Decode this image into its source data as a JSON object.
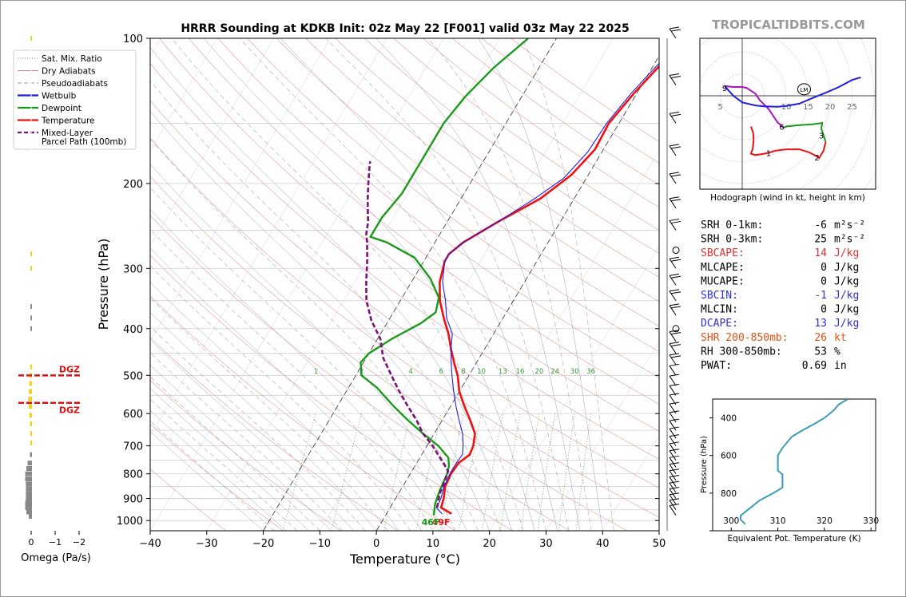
{
  "title": "HRRR Sounding at KDKB Init: 02z May 22 [F001] valid 03z May 22 2025",
  "watermark": "TROPICALTIDBITS.COM",
  "legend": [
    {
      "label": "Sat. Mix. Ratio",
      "color": "#777777",
      "style": "dotted"
    },
    {
      "label": "Dry Adiabats",
      "color": "#e08080",
      "style": "solid"
    },
    {
      "label": "Pseudoadiabats",
      "color": "#999999",
      "style": "dashed"
    },
    {
      "label": "Wetbulb",
      "color": "#1f1fe0",
      "style": "solid"
    },
    {
      "label": "Dewpoint",
      "color": "#1a9a1a",
      "style": "solid"
    },
    {
      "label": "Temperature",
      "color": "#ee1111",
      "style": "solid"
    },
    {
      "label": "Mixed-Layer\nParcel Path (100mb)",
      "color": "#7a117a",
      "style": "dashed"
    }
  ],
  "omega": {
    "xlabel": "Omega (Pa/s)",
    "ticks": [
      "0",
      "−1",
      "−2"
    ],
    "dgz_label": "DGZ",
    "dgz_levels": [
      500,
      570
    ],
    "bars": [
      {
        "p": 980,
        "v": 0.1,
        "c": "#888"
      },
      {
        "p": 960,
        "v": 0.2,
        "c": "#888"
      },
      {
        "p": 940,
        "v": 0.25,
        "c": "#888"
      },
      {
        "p": 920,
        "v": 0.25,
        "c": "#888"
      },
      {
        "p": 900,
        "v": 0.22,
        "c": "#888"
      },
      {
        "p": 880,
        "v": 0.22,
        "c": "#888"
      },
      {
        "p": 860,
        "v": 0.22,
        "c": "#888"
      },
      {
        "p": 840,
        "v": 0.22,
        "c": "#888"
      },
      {
        "p": 820,
        "v": 0.25,
        "c": "#888"
      },
      {
        "p": 800,
        "v": 0.25,
        "c": "#888"
      },
      {
        "p": 780,
        "v": 0.2,
        "c": "#888"
      },
      {
        "p": 760,
        "v": 0.15,
        "c": "#888"
      },
      {
        "p": 730,
        "v": 0.05,
        "c": "#888"
      },
      {
        "p": 690,
        "v": 0.04,
        "c": "#f5d020"
      },
      {
        "p": 660,
        "v": 0.04,
        "c": "#f5d020"
      },
      {
        "p": 630,
        "v": 0.05,
        "c": "#f5d020"
      },
      {
        "p": 605,
        "v": 0.07,
        "c": "#f5d020"
      },
      {
        "p": 580,
        "v": 0.1,
        "c": "#f5d020"
      },
      {
        "p": 560,
        "v": 0.12,
        "c": "#f5d020"
      },
      {
        "p": 540,
        "v": 0.1,
        "c": "#f5d020"
      },
      {
        "p": 520,
        "v": 0.08,
        "c": "#f5d020"
      },
      {
        "p": 500,
        "v": 0.06,
        "c": "#f5d020"
      },
      {
        "p": 480,
        "v": 0.04,
        "c": "#f5d020"
      },
      {
        "p": 400,
        "v": 0.03,
        "c": "#888"
      },
      {
        "p": 380,
        "v": 0.03,
        "c": "#888"
      },
      {
        "p": 360,
        "v": 0.03,
        "c": "#888"
      },
      {
        "p": 300,
        "v": 0.03,
        "c": "#f5d020"
      },
      {
        "p": 280,
        "v": 0.03,
        "c": "#f5d020"
      },
      {
        "p": 100,
        "v": 0.03,
        "c": "#f5d020"
      }
    ]
  },
  "chart_data": [
    {
      "type": "line",
      "title": "HRRR Sounding at KDKB Init: 02z May 22 [F001] valid 03z May 22 2025",
      "xlabel": "Temperature (°C)",
      "ylabel": "Pressure (hPa)",
      "xlim": [
        -40,
        50
      ],
      "ylim": [
        1050,
        100
      ],
      "yscale": "log",
      "x_ticks": [
        "−40",
        "−30",
        "−20",
        "−10",
        "0",
        "10",
        "20",
        "30",
        "40",
        "50"
      ],
      "y_ticks": [
        "100",
        "200",
        "300",
        "400",
        "500",
        "600",
        "700",
        "800",
        "900",
        "1000"
      ],
      "mixing_ratio_labels": [
        "1",
        "2",
        "4",
        "6",
        "8",
        "10",
        "13",
        "16",
        "20",
        "24",
        "30",
        "36"
      ],
      "surface_temp_label": "49F",
      "surface_dewp_label": "46F",
      "series": [
        {
          "name": "Temperature",
          "color": "#ee1111",
          "points": [
            [
              11.5,
              968
            ],
            [
              9,
              940
            ],
            [
              8.5,
              900
            ],
            [
              7.5,
              850
            ],
            [
              7.2,
              800
            ],
            [
              7.4,
              760
            ],
            [
              8.5,
              730
            ],
            [
              8.2,
              700
            ],
            [
              7.2,
              660
            ],
            [
              5,
              620
            ],
            [
              2.5,
              580
            ],
            [
              0,
              540
            ],
            [
              -2,
              500
            ],
            [
              -4,
              470
            ],
            [
              -6,
              440
            ],
            [
              -8,
              410
            ],
            [
              -10.5,
              380
            ],
            [
              -13,
              350
            ],
            [
              -15,
              320
            ],
            [
              -16.3,
              290
            ],
            [
              -16.3,
              280
            ],
            [
              -15,
              265
            ],
            [
              -11,
              240
            ],
            [
              -6,
              215
            ],
            [
              -3,
              192
            ],
            [
              -1.5,
              170
            ],
            [
              -1.8,
              150
            ],
            [
              -0.5,
              130
            ],
            [
              1,
              115
            ],
            [
              3,
              100
            ]
          ]
        },
        {
          "name": "Wetbulb",
          "color": "#1f1fe0",
          "points": [
            [
              9.8,
              968
            ],
            [
              8.2,
              940
            ],
            [
              8,
              900
            ],
            [
              7.3,
              850
            ],
            [
              7,
              800
            ],
            [
              7,
              760
            ],
            [
              7.2,
              730
            ],
            [
              6.4,
              700
            ],
            [
              5,
              660
            ],
            [
              3,
              620
            ],
            [
              1,
              580
            ],
            [
              -1,
              540
            ],
            [
              -3,
              500
            ],
            [
              -4.5,
              470
            ],
            [
              -6,
              440
            ],
            [
              -7.3,
              410
            ],
            [
              -10,
              380
            ],
            [
              -12,
              350
            ],
            [
              -14.5,
              320
            ],
            [
              -16.3,
              290
            ],
            [
              -16.3,
              280
            ],
            [
              -15,
              265
            ],
            [
              -11,
              240
            ],
            [
              -7,
              215
            ],
            [
              -4,
              195
            ],
            [
              -2.5,
              172
            ],
            [
              -2.2,
              150
            ],
            [
              -1,
              130
            ],
            [
              0.5,
              115
            ],
            [
              2.5,
              100
            ]
          ]
        },
        {
          "name": "Dewpoint",
          "color": "#1a9a1a",
          "points": [
            [
              8.5,
              975
            ],
            [
              7.5,
              920
            ],
            [
              7,
              870
            ],
            [
              6.5,
              800
            ],
            [
              6,
              770
            ],
            [
              5,
              740
            ],
            [
              2,
              700
            ],
            [
              -2,
              660
            ],
            [
              -6,
              620
            ],
            [
              -10,
              580
            ],
            [
              -15,
              530
            ],
            [
              -19,
              500
            ],
            [
              -20.5,
              470
            ],
            [
              -20,
              450
            ],
            [
              -17.5,
              420
            ],
            [
              -14,
              390
            ],
            [
              -12.5,
              370
            ],
            [
              -13.5,
              345
            ],
            [
              -17,
              315
            ],
            [
              -22,
              285
            ],
            [
              -28.5,
              265
            ],
            [
              -32,
              258
            ],
            [
              -32,
              250
            ],
            [
              -32,
              235
            ],
            [
              -31,
              210
            ],
            [
              -31,
              195
            ],
            [
              -31,
              170
            ],
            [
              -31,
              150
            ],
            [
              -30,
              132
            ],
            [
              -28,
              115
            ],
            [
              -25,
              100
            ]
          ]
        },
        {
          "name": "Mixed-Layer Parcel Path (100mb)",
          "color": "#7a117a",
          "points": [
            [
              8.3,
              940
            ],
            [
              7.3,
              880
            ],
            [
              6.8,
              820
            ],
            [
              6.4,
              790
            ],
            [
              5.3,
              770
            ],
            [
              3.5,
              740
            ],
            [
              1,
              700
            ],
            [
              -2,
              660
            ],
            [
              -4.5,
              620
            ],
            [
              -7.5,
              580
            ],
            [
              -11,
              535
            ],
            [
              -14.5,
              490
            ],
            [
              -17,
              460
            ],
            [
              -19.5,
              420
            ],
            [
              -23,
              385
            ],
            [
              -26,
              350
            ],
            [
              -28,
              320
            ],
            [
              -30,
              290
            ],
            [
              -32,
              265
            ],
            [
              -33,
              255
            ],
            [
              -34,
              240
            ],
            [
              -35,
              230
            ],
            [
              -36.5,
              215
            ],
            [
              -38,
              200
            ],
            [
              -39.5,
              185
            ],
            [
              -40,
              180
            ]
          ]
        }
      ]
    },
    {
      "type": "line",
      "title": "Hodograph (wind in kt, height in km)",
      "ring_labels": [
        "5",
        "10",
        "15",
        "20",
        "25"
      ],
      "hodo_x_label": "kt",
      "motion_label": "LM",
      "height_labels": [
        {
          "t": "1",
          "u": 6,
          "v": -13
        },
        {
          "t": "2",
          "u": 17,
          "v": -14
        },
        {
          "t": "3",
          "u": 18,
          "v": -9
        },
        {
          "t": "6",
          "u": 9,
          "v": -7
        },
        {
          "t": "9",
          "u": -4,
          "v": 1.8
        }
      ],
      "motion_point": {
        "u": 13,
        "v": 1.3
      },
      "series": [
        {
          "name": "0-3 km (red)",
          "color": "#ee1111",
          "points": [
            [
              2,
              -7
            ],
            [
              2.5,
              -8.5
            ],
            [
              2.6,
              -10
            ],
            [
              2.4,
              -12
            ],
            [
              2,
              -13.2
            ],
            [
              3,
              -13.5
            ],
            [
              5,
              -13.2
            ],
            [
              6,
              -13
            ],
            [
              7.5,
              -12.5
            ],
            [
              10,
              -12.2
            ],
            [
              13,
              -12.2
            ],
            [
              15,
              -12.8
            ],
            [
              17,
              -13.8
            ],
            [
              17.5,
              -14.2
            ],
            [
              18.5,
              -12.5
            ],
            [
              19,
              -10.5
            ]
          ]
        },
        {
          "name": "3-6 km (green)",
          "color": "#1a9a1a",
          "points": [
            [
              19,
              -10.5
            ],
            [
              18.5,
              -9
            ],
            [
              18,
              -7.5
            ],
            [
              18.2,
              -6.2
            ],
            [
              16,
              -6.5
            ],
            [
              13,
              -6.7
            ],
            [
              10,
              -7
            ],
            [
              9.5,
              -7.3
            ]
          ]
        },
        {
          "name": "6-9 km (magenta)",
          "color": "#aa11bb",
          "points": [
            [
              9.5,
              -7.3
            ],
            [
              8,
              -6
            ],
            [
              6,
              -3
            ],
            [
              4,
              -1
            ],
            [
              3,
              0.5
            ],
            [
              1,
              1.8
            ],
            [
              0,
              2
            ],
            [
              -2,
              2
            ],
            [
              -4,
              2.2
            ]
          ]
        },
        {
          "name": "9-12 km (blue)",
          "color": "#1f1fe0",
          "points": [
            [
              -4,
              2.2
            ],
            [
              -2,
              0
            ],
            [
              0,
              -1.5
            ],
            [
              3,
              -2.2
            ],
            [
              5,
              -2.4
            ],
            [
              8,
              -2.5
            ],
            [
              10,
              -2.3
            ],
            [
              13,
              -1.8
            ],
            [
              16,
              -0.5
            ],
            [
              19,
              0.7
            ],
            [
              22,
              2
            ],
            [
              25,
              3.6
            ],
            [
              27,
              4.2
            ]
          ]
        }
      ]
    },
    {
      "type": "line",
      "xlabel": "Equivalent Pot. Temperature (K)",
      "ylabel": "Pressure (hPa)",
      "xlim": [
        296,
        331
      ],
      "ylim": [
        1000,
        300
      ],
      "x_ticks": [
        "300",
        "310",
        "320",
        "330"
      ],
      "y_ticks": [
        "400",
        "600",
        "800"
      ],
      "series": [
        {
          "name": "Theta-e",
          "color": "#3a9db5",
          "points": [
            [
              303,
              965
            ],
            [
              302,
              940
            ],
            [
              302,
              920
            ],
            [
              304,
              880
            ],
            [
              306,
              840
            ],
            [
              309,
              800
            ],
            [
              311,
              770
            ],
            [
              311,
              740
            ],
            [
              311,
              700
            ],
            [
              310,
              680
            ],
            [
              310,
              640
            ],
            [
              310,
              600
            ],
            [
              311,
              560
            ],
            [
              313,
              500
            ],
            [
              315,
              470
            ],
            [
              318,
              430
            ],
            [
              320,
              400
            ],
            [
              321,
              380
            ],
            [
              322,
              360
            ],
            [
              323,
              330
            ],
            [
              325,
              300
            ]
          ]
        }
      ]
    }
  ],
  "indices": [
    {
      "label": "SRH 0-1km:",
      "value": "-6",
      "unit": "m²s⁻²",
      "color": "#000000"
    },
    {
      "label": "SRH 0-3km:",
      "value": "25",
      "unit": "m²s⁻²",
      "color": "#000000"
    },
    {
      "label": "SBCAPE:",
      "value": "14",
      "unit": "J/kg",
      "color": "#e03030"
    },
    {
      "label": "MLCAPE:",
      "value": "0",
      "unit": "J/kg",
      "color": "#000000"
    },
    {
      "label": "MUCAPE:",
      "value": "0",
      "unit": "J/kg",
      "color": "#000000"
    },
    {
      "label": "SBCIN:",
      "value": "-1",
      "unit": "J/kg",
      "color": "#3030d0"
    },
    {
      "label": "MLCIN:",
      "value": "0",
      "unit": "J/kg",
      "color": "#000000"
    },
    {
      "label": "DCAPE:",
      "value": "13",
      "unit": "J/kg",
      "color": "#3030d0"
    },
    {
      "label": "SHR 200-850mb:",
      "value": "26",
      "unit": "kt",
      "color": "#e05010"
    },
    {
      "label": "RH 300-850mb:",
      "value": "53",
      "unit": "%",
      "color": "#000000"
    },
    {
      "label": "PWAT:",
      "value": "0.69",
      "unit": "in",
      "color": "#000000"
    }
  ]
}
